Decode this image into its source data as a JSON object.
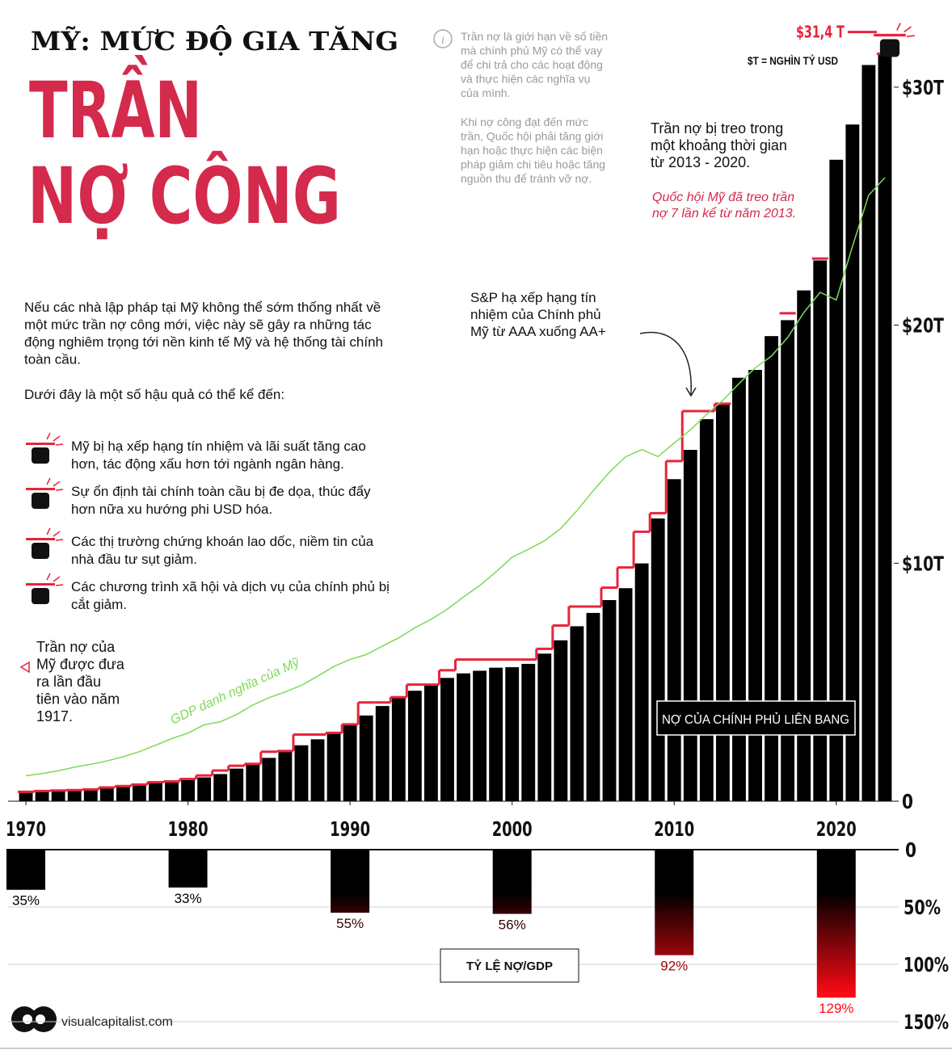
{
  "header": {
    "kicker": "MỸ: MỨC ĐỘ GIA TĂNG",
    "title": [
      "TRẦN",
      "NỢ CÔNG"
    ]
  },
  "info_note": [
    [
      "Trần nợ là giới hạn về số tiền",
      "mà chính phủ Mỹ có thể vay",
      "để chi trả cho các hoạt động",
      "và thực hiện các nghĩa vụ",
      "của mình."
    ],
    [
      "Khi nợ công đạt đến mức",
      "trần, Quốc hội phải tăng giới",
      "hạn hoặc thực hiện các biện",
      "pháp giảm chi tiêu hoặc tăng",
      "nguồn thu để tránh vỡ nợ."
    ]
  ],
  "intro": [
    [
      "Nếu các nhà lập pháp tại Mỹ không thể sớm thống nhất về",
      "một mức trần nợ công mới, việc này sẽ gây ra những tác",
      "động nghiêm trọng tới nền kinh tế Mỹ và hệ thống tài chính",
      "toàn cầu."
    ],
    [
      "Dưới đây là một số hậu quả có thể kể đến:"
    ]
  ],
  "consequences": [
    [
      "Mỹ bị hạ xếp hạng tín nhiệm và lãi suất tăng cao",
      "hơn, tác động xấu hơn tới ngành ngân hàng."
    ],
    [
      "Sự ổn định tài chính toàn cầu bị đe dọa, thúc đẩy",
      "hơn nữa xu hướng phi USD hóa."
    ],
    [
      "Các thị trường chứng khoán lao dốc, niềm tin của",
      "nhà đầu tư sụt giảm."
    ],
    [
      "Các chương trình xã hội và dịch vụ của chính phủ bị",
      "cắt giảm."
    ]
  ],
  "source": "visualcapitalist.com",
  "chart_data": [
    {
      "type": "bar",
      "x": [
        1970,
        1971,
        1972,
        1973,
        1974,
        1975,
        1976,
        1977,
        1978,
        1979,
        1980,
        1981,
        1982,
        1983,
        1984,
        1985,
        1986,
        1987,
        1988,
        1989,
        1990,
        1991,
        1992,
        1993,
        1994,
        1995,
        1996,
        1997,
        1998,
        1999,
        2000,
        2001,
        2002,
        2003,
        2004,
        2005,
        2006,
        2007,
        2008,
        2009,
        2010,
        2011,
        2012,
        2013,
        2014,
        2015,
        2016,
        2017,
        2018,
        2019,
        2020,
        2021,
        2022,
        2023
      ],
      "xlim": [
        1969.5,
        2023.5
      ],
      "xticks": [
        1970,
        1980,
        1990,
        2000,
        2010,
        2020
      ],
      "ylim": [
        0,
        33
      ],
      "yticks": [
        0,
        {
          "value": 10,
          "label": "$10T"
        },
        {
          "value": 20,
          "label": "$20T"
        },
        {
          "value": 30,
          "label": "$30T"
        }
      ],
      "series": [
        {
          "name": "NỢ CỦA CHÍNH PHỦ LIÊN BANG",
          "type": "bar",
          "color": "#000000",
          "values": [
            0.38,
            0.41,
            0.44,
            0.47,
            0.48,
            0.54,
            0.63,
            0.71,
            0.78,
            0.83,
            0.91,
            1.0,
            1.14,
            1.37,
            1.57,
            1.82,
            2.13,
            2.35,
            2.6,
            2.86,
            3.21,
            3.6,
            4.0,
            4.35,
            4.64,
            4.92,
            5.18,
            5.37,
            5.48,
            5.61,
            5.63,
            5.77,
            6.2,
            6.76,
            7.35,
            7.91,
            8.45,
            8.95,
            9.99,
            11.88,
            13.53,
            14.76,
            16.05,
            16.72,
            17.79,
            18.12,
            19.54,
            20.21,
            21.46,
            22.72,
            26.95,
            28.43,
            30.93,
            31.4
          ]
        },
        {
          "type": "step",
          "color": "#e8243c",
          "values": [
            0.395,
            0.43,
            0.45,
            0.465,
            0.495,
            0.577,
            0.636,
            0.7,
            0.798,
            0.83,
            0.935,
            1.08,
            1.29,
            1.49,
            1.57,
            2.08,
            2.11,
            2.8,
            2.8,
            2.87,
            3.23,
            4.15,
            4.15,
            4.37,
            4.9,
            4.9,
            5.5,
            5.95,
            5.95,
            5.95,
            5.95,
            5.95,
            6.4,
            7.38,
            8.18,
            8.18,
            8.97,
            9.82,
            11.32,
            12.1,
            14.29,
            16.39,
            16.39,
            16.7,
            null,
            null,
            null,
            20.5,
            null,
            22.8,
            null,
            null,
            null,
            31.4
          ],
          "value_labels": [
            null,
            null,
            null,
            null,
            null,
            null,
            null,
            null,
            null,
            null,
            null,
            null,
            null,
            null,
            null,
            null,
            null,
            null,
            null,
            null,
            null,
            null,
            null,
            null,
            null,
            null,
            null,
            null,
            null,
            null,
            null,
            null,
            null,
            null,
            null,
            null,
            null,
            null,
            null,
            null,
            null,
            null,
            null,
            null,
            null,
            null,
            null,
            null,
            null,
            null,
            null,
            null,
            null,
            "$31,4 T"
          ]
        },
        {
          "name": "GDP danh nghĩa của Mỹ",
          "type": "line",
          "color": "#7ed957",
          "values": [
            1.07,
            1.16,
            1.28,
            1.43,
            1.55,
            1.69,
            1.87,
            2.08,
            2.35,
            2.63,
            2.86,
            3.21,
            3.34,
            3.64,
            4.04,
            4.35,
            4.59,
            4.87,
            5.25,
            5.66,
            5.96,
            6.16,
            6.52,
            6.86,
            7.29,
            7.64,
            8.07,
            8.58,
            9.06,
            9.63,
            10.25,
            10.58,
            10.94,
            11.46,
            12.21,
            13.04,
            13.82,
            14.47,
            14.77,
            14.48,
            15.05,
            15.6,
            16.25,
            16.84,
            17.55,
            18.21,
            18.7,
            19.48,
            20.53,
            21.38,
            21.06,
            23.32,
            25.46,
            26.2
          ]
        }
      ],
      "unit_note": "$T = NGHÌN TỶ USD",
      "annotations": {
        "sp_downgrade": [
          "S&P hạ xếp hạng tín",
          "nhiệm của Chính phủ",
          "Mỹ từ AAA xuống AA+"
        ],
        "ceiling_suspended": [
          "Trần nợ bị treo trong",
          "một khoảng thời gian",
          "từ 2013 - 2020."
        ],
        "suspension_count": [
          "Quốc hội Mỹ đã treo trần",
          "nợ 7 lần kể từ năm 2013."
        ],
        "first_ceiling": [
          "Trần nợ của",
          "Mỹ được đưa",
          "ra lần đầu",
          "tiên vào năm",
          "1917."
        ]
      }
    },
    {
      "type": "bar",
      "title": "TỶ LỆ NỢ/GDP",
      "x": [
        1970,
        1980,
        1990,
        2000,
        2010,
        2020
      ],
      "xlim": [
        1969.5,
        2023.5
      ],
      "values": [
        35,
        33,
        55,
        56,
        92,
        129
      ],
      "value_labels": [
        "35%",
        "33%",
        "55%",
        "56%",
        "92%",
        "129%"
      ],
      "ylim": [
        0,
        150
      ],
      "yticks": [
        0,
        {
          "value": 50,
          "label": "50%"
        },
        {
          "value": 100,
          "label": "100%"
        },
        {
          "value": 150,
          "label": "150%"
        }
      ],
      "gradient": [
        "#000000",
        "#ff0a14"
      ],
      "grid": true
    }
  ]
}
